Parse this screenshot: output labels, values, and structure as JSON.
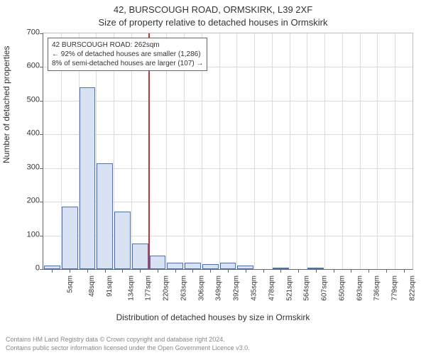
{
  "title_main": "42, BURSCOUGH ROAD, ORMSKIRK, L39 2XF",
  "title_sub": "Size of property relative to detached houses in Ormskirk",
  "ylabel": "Number of detached properties",
  "xlabel": "Distribution of detached houses by size in Ormskirk",
  "footer_line1": "Contains HM Land Registry data © Crown copyright and database right 2024.",
  "footer_line2": "Contains public sector information licensed under the Open Government Licence v3.0.",
  "annotation": {
    "line1": "42 BURSCOUGH ROAD: 262sqm",
    "line2": "← 92% of detached houses are smaller (1,286)",
    "line3": "8% of semi-detached houses are larger (107) →"
  },
  "chart": {
    "type": "histogram",
    "ylim": [
      0,
      700
    ],
    "ytick_step": 100,
    "yticks": [
      0,
      100,
      200,
      300,
      400,
      500,
      600,
      700
    ],
    "x_start": 5,
    "x_step": 43,
    "x_count": 21,
    "bar_values": [
      10,
      185,
      540,
      315,
      170,
      75,
      40,
      20,
      18,
      15,
      18,
      10,
      0,
      2,
      0,
      5,
      0,
      0,
      0,
      0,
      0
    ],
    "ref_value_x": 262,
    "bar_fill": "#d9e2f3",
    "bar_border": "#4472c4",
    "grid_color": "#dcdcdc",
    "refline_color": "#cc3333",
    "background_color": "#ffffff",
    "title_fontsize": 13,
    "label_fontsize": 12,
    "tick_fontsize": 10,
    "annotation_fontsize": 10,
    "footer_fontsize": 9,
    "footer_color": "#888888"
  }
}
